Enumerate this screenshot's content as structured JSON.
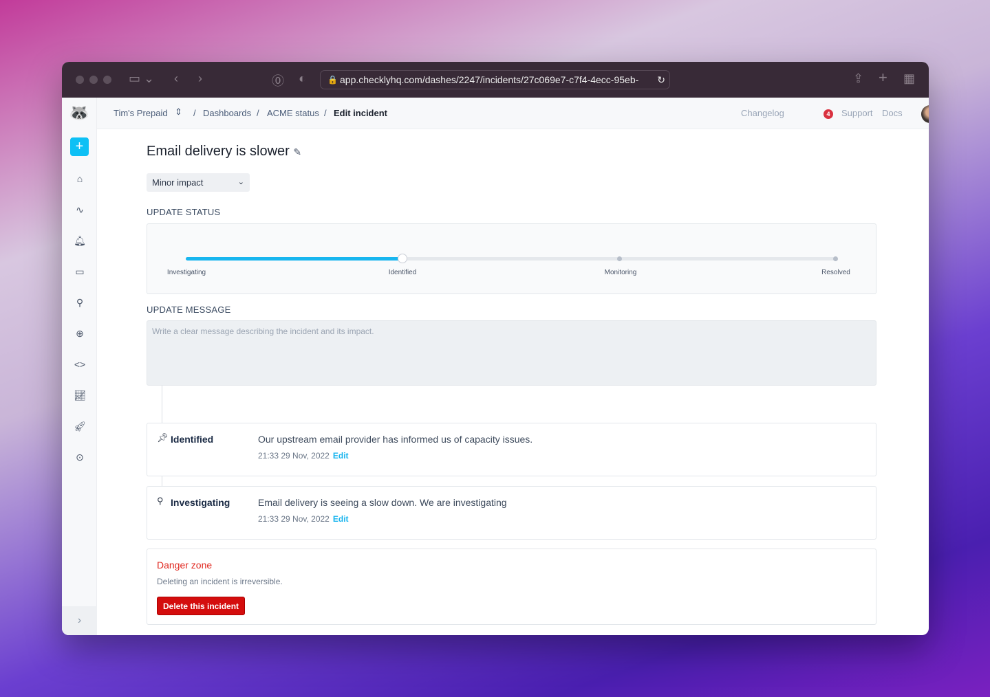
{
  "browser": {
    "url": "app.checklyhq.com/dashes/2247/incidents/27c069e7-c7f4-4ecc-95eb-"
  },
  "breadcrumb": {
    "account": "Tim's Prepaid",
    "items": [
      "Dashboards",
      "ACME status",
      "Edit incident"
    ]
  },
  "header": {
    "changelog": "Changelog",
    "changelog_count": "4",
    "support": "Support",
    "docs": "Docs"
  },
  "incident": {
    "title": "Email delivery is slower",
    "impact": "Minor impact"
  },
  "update_status": {
    "label": "UPDATE STATUS",
    "steps": [
      "Investigating",
      "Identified",
      "Monitoring",
      "Resolved"
    ],
    "current_step": "Identified",
    "progress_fraction": 0.333
  },
  "update_message": {
    "label": "UPDATE MESSAGE",
    "placeholder": "Write a clear message describing the incident and its impact."
  },
  "updates": [
    {
      "status": "Identified",
      "icon": "pin-icon",
      "message": "Our upstream email provider has informed us of capacity issues.",
      "timestamp": "21:33 29 Nov, 2022",
      "edit": "Edit"
    },
    {
      "status": "Investigating",
      "icon": "search-icon",
      "message": "Email delivery is seeing a slow down. We are investigating",
      "timestamp": "21:33 29 Nov, 2022",
      "edit": "Edit"
    }
  ],
  "danger_zone": {
    "title": "Danger zone",
    "description": "Deleting an incident is irreversible.",
    "button": "Delete this incident"
  },
  "colors": {
    "accent": "#19b6ef",
    "danger": "#d40d0d"
  }
}
